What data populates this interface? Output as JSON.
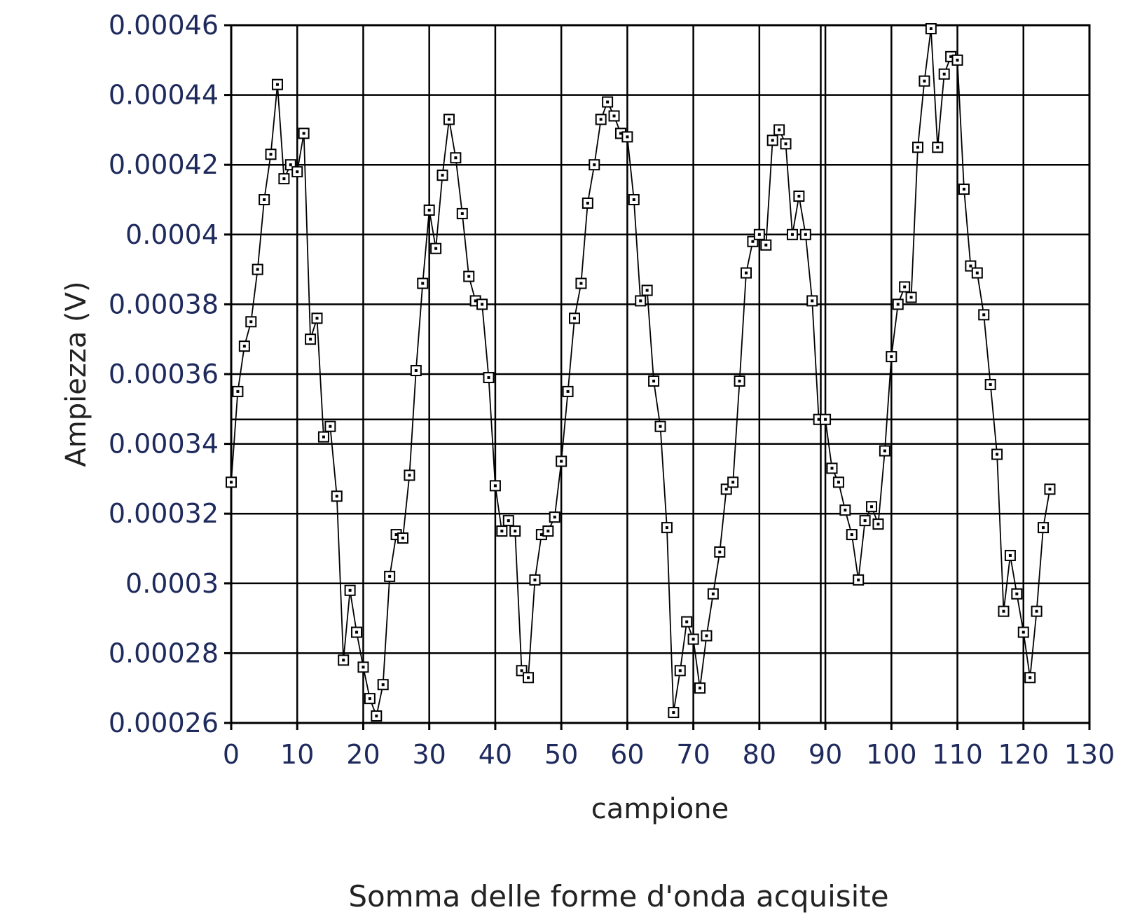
{
  "caption": "Somma delle forme d'onda acquisite",
  "chart_data": {
    "type": "line",
    "xlabel": "campione",
    "ylabel": "Ampiezza (V)",
    "xlim": [
      0,
      130
    ],
    "ylim": [
      0.00026,
      0.00046
    ],
    "x_ticks": [
      0,
      10,
      20,
      30,
      40,
      50,
      60,
      70,
      80,
      90,
      100,
      110,
      120,
      130
    ],
    "x_tick_labels": [
      "0",
      "10",
      "20",
      "30",
      "40",
      "50",
      "60",
      "70",
      "80",
      "90",
      "100",
      "110",
      "120",
      "130"
    ],
    "y_ticks": [
      0.00026,
      0.00028,
      0.0003,
      0.00032,
      0.00034,
      0.00036,
      0.00038,
      0.0004,
      0.00042,
      0.00044,
      0.00046
    ],
    "y_tick_labels": [
      "0.00026",
      "0.00028",
      "0.0003",
      "0.00032",
      "0.00034",
      "0.00036",
      "0.00038",
      "0.0004",
      "0.00042",
      "0.00044",
      "0.00046"
    ],
    "grid": true,
    "marker": "square",
    "cursor_x": 89.3,
    "cursor_y": 0.000347,
    "series": [
      {
        "x": [
          0,
          1,
          2,
          3,
          4,
          5,
          6,
          7,
          8,
          9,
          10,
          11,
          12,
          13,
          14,
          15,
          16,
          17,
          18,
          19,
          20,
          21,
          22,
          23,
          24,
          25,
          26,
          27,
          28,
          29,
          30,
          31,
          32,
          33,
          34,
          35,
          36,
          37,
          38,
          39,
          40,
          41,
          42,
          43,
          44,
          45,
          46,
          47,
          48,
          49,
          50,
          51,
          52,
          53,
          54,
          55,
          56,
          57,
          58,
          59,
          60,
          61,
          62,
          63,
          64,
          65,
          66,
          67,
          68,
          69,
          70,
          71,
          72,
          73,
          74,
          75,
          76,
          77,
          78,
          79,
          80,
          81,
          82,
          83,
          84,
          85,
          86,
          87,
          88,
          89,
          90,
          91,
          92,
          93,
          94,
          95,
          96,
          97,
          98,
          99,
          100,
          101,
          102,
          103,
          104,
          105,
          106,
          107,
          108,
          109,
          110,
          111,
          112,
          113,
          114,
          115,
          116,
          117,
          118,
          119,
          120,
          121,
          122,
          123,
          124
        ],
        "values": [
          0.000329,
          0.000355,
          0.000368,
          0.000375,
          0.00039,
          0.00041,
          0.000423,
          0.000443,
          0.000416,
          0.00042,
          0.000418,
          0.000429,
          0.00037,
          0.000376,
          0.000342,
          0.000345,
          0.000325,
          0.000278,
          0.000298,
          0.000286,
          0.000276,
          0.000267,
          0.000262,
          0.000271,
          0.000302,
          0.000314,
          0.000313,
          0.000331,
          0.000361,
          0.000386,
          0.000407,
          0.000396,
          0.000417,
          0.000433,
          0.000422,
          0.000406,
          0.000388,
          0.000381,
          0.00038,
          0.000359,
          0.000328,
          0.000315,
          0.000318,
          0.000315,
          0.000275,
          0.000273,
          0.000301,
          0.000314,
          0.000315,
          0.000319,
          0.000335,
          0.000355,
          0.000376,
          0.000386,
          0.000409,
          0.00042,
          0.000433,
          0.000438,
          0.000434,
          0.000429,
          0.000428,
          0.00041,
          0.000381,
          0.000384,
          0.000358,
          0.000345,
          0.000316,
          0.000263,
          0.000275,
          0.000289,
          0.000284,
          0.00027,
          0.000285,
          0.000297,
          0.000309,
          0.000327,
          0.000329,
          0.000358,
          0.000389,
          0.000398,
          0.0004,
          0.000397,
          0.000427,
          0.00043,
          0.000426,
          0.0004,
          0.000411,
          0.0004,
          0.000381,
          0.000347,
          0.000347,
          0.000333,
          0.000329,
          0.000321,
          0.000314,
          0.000301,
          0.000318,
          0.000322,
          0.000317,
          0.000338,
          0.000365,
          0.00038,
          0.000385,
          0.000382,
          0.000425,
          0.000444,
          0.000459,
          0.000425,
          0.000446,
          0.000451,
          0.00045,
          0.000413,
          0.000391,
          0.000389,
          0.000377,
          0.000357,
          0.000337,
          0.000292,
          0.000308,
          0.000297,
          0.000286,
          0.000273,
          0.000292,
          0.000316,
          0.000327
        ]
      }
    ]
  }
}
